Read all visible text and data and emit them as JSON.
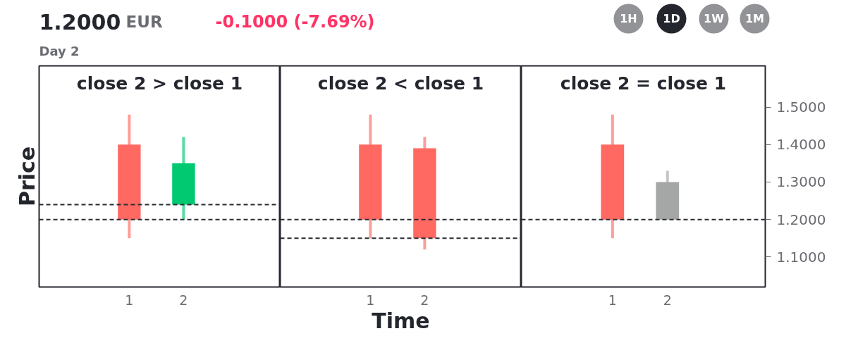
{
  "chart_data": [
    {
      "type": "candlestick",
      "title": "close 2 > close 1",
      "ylabel": "Price",
      "categories": [
        "1",
        "2"
      ],
      "ohlc": [
        [
          1.4,
          1.48,
          1.15,
          1.2
        ],
        [
          1.24,
          1.42,
          1.2,
          1.35
        ]
      ],
      "colors": [
        "#ff6961",
        "#00c972"
      ],
      "ylim": [
        1.02,
        1.61
      ],
      "tick_labels": "x",
      "grid": false,
      "ref_lines": [
        {
          "axis": "y",
          "value": 1.2,
          "color": "#2a2c33",
          "line_style": "dashed"
        },
        {
          "axis": "y",
          "value": 1.24,
          "color": "#2a2c33",
          "line_style": "dashed"
        }
      ],
      "annotations": [
        "1.2000",
        "EUR",
        "-0.1000 (-7.69%)",
        "Day 2",
        "1H",
        "1D",
        "1W",
        "1M"
      ]
    },
    {
      "type": "candlestick",
      "title": "close 2 < close 1",
      "xlabel": "Time",
      "categories": [
        "1",
        "2"
      ],
      "ohlc": [
        [
          1.4,
          1.48,
          1.15,
          1.2
        ],
        [
          1.39,
          1.42,
          1.12,
          1.15
        ]
      ],
      "colors": [
        "#ff6961",
        "#ff6961"
      ],
      "ylim": [
        1.02,
        1.61
      ],
      "tick_labels": "x",
      "grid": false,
      "ref_lines": [
        {
          "axis": "y",
          "value": 1.2,
          "color": "#2a2c33",
          "line_style": "dashed"
        },
        {
          "axis": "y",
          "value": 1.15,
          "color": "#2a2c33",
          "line_style": "dashed"
        }
      ]
    },
    {
      "type": "candlestick",
      "title": "close 2 = close 1",
      "categories": [
        "1",
        "2"
      ],
      "ohlc": [
        [
          1.4,
          1.48,
          1.15,
          1.2
        ],
        [
          1.3,
          1.33,
          1.2,
          1.2
        ]
      ],
      "colors": [
        "#ff6961",
        "#a5a7a6"
      ],
      "ylim": [
        1.02,
        1.61
      ],
      "yticks": [
        {
          "value": 1.1,
          "label": "1.1000"
        },
        {
          "value": 1.2,
          "label": null
        },
        {
          "value": 1.3,
          "label": "1.3000"
        },
        {
          "value": 1.4,
          "label": "1.4000"
        },
        {
          "value": 1.5,
          "label": "1.5000"
        }
      ],
      "grid": false,
      "ref_lines": [
        {
          "axis": "y",
          "value": 1.2,
          "label": "1.2000",
          "color": "#2a2c33",
          "line_style": "dashed"
        }
      ]
    }
  ]
}
